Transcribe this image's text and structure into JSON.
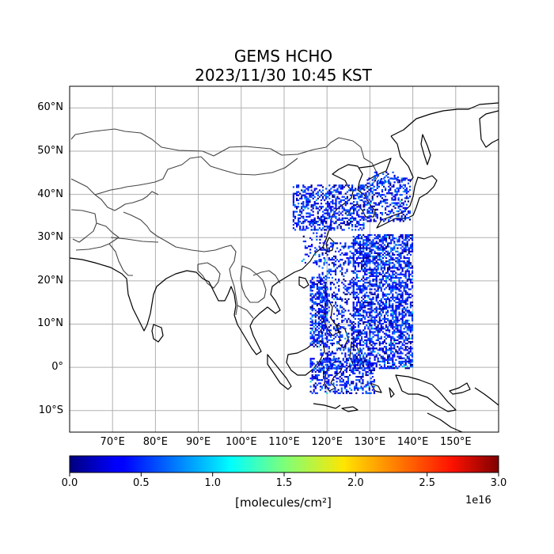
{
  "title": {
    "line1": "GEMS HCHO",
    "line2": "2023/11/30 10:45 KST"
  },
  "map": {
    "lon_range": [
      60,
      160
    ],
    "lat_range": [
      -15,
      65
    ],
    "lat_ticks": [
      {
        "value": 60,
        "label": "60°N"
      },
      {
        "value": 50,
        "label": "50°N"
      },
      {
        "value": 40,
        "label": "40°N"
      },
      {
        "value": 30,
        "label": "30°N"
      },
      {
        "value": 20,
        "label": "20°N"
      },
      {
        "value": 10,
        "label": "10°N"
      },
      {
        "value": 0,
        "label": "0°"
      },
      {
        "value": -10,
        "label": "10°S"
      }
    ],
    "lon_ticks": [
      {
        "value": 70,
        "label": "70°E"
      },
      {
        "value": 80,
        "label": "80°E"
      },
      {
        "value": 90,
        "label": "90°E"
      },
      {
        "value": 100,
        "label": "100°E"
      },
      {
        "value": 110,
        "label": "110°E"
      },
      {
        "value": 120,
        "label": "120°E"
      },
      {
        "value": 130,
        "label": "130°E"
      },
      {
        "value": 140,
        "label": "140°E"
      },
      {
        "value": 150,
        "label": "150°E"
      }
    ],
    "grid": true,
    "colors": {
      "coastline": "#000000",
      "border": "#444444",
      "grid": "#b0b0b0"
    }
  },
  "colorbar": {
    "colormap": "jet",
    "vmin": 0.0,
    "vmax": 3.0,
    "ticks": [
      {
        "value": 0.0,
        "label": "0.0"
      },
      {
        "value": 0.5,
        "label": "0.5"
      },
      {
        "value": 1.0,
        "label": "1.0"
      },
      {
        "value": 1.5,
        "label": "1.5"
      },
      {
        "value": 2.0,
        "label": "2.0"
      },
      {
        "value": 2.5,
        "label": "2.5"
      },
      {
        "value": 3.0,
        "label": "3.0"
      }
    ],
    "unit_label": "[molecules/cm²]",
    "exponent_label": "1e16"
  }
}
